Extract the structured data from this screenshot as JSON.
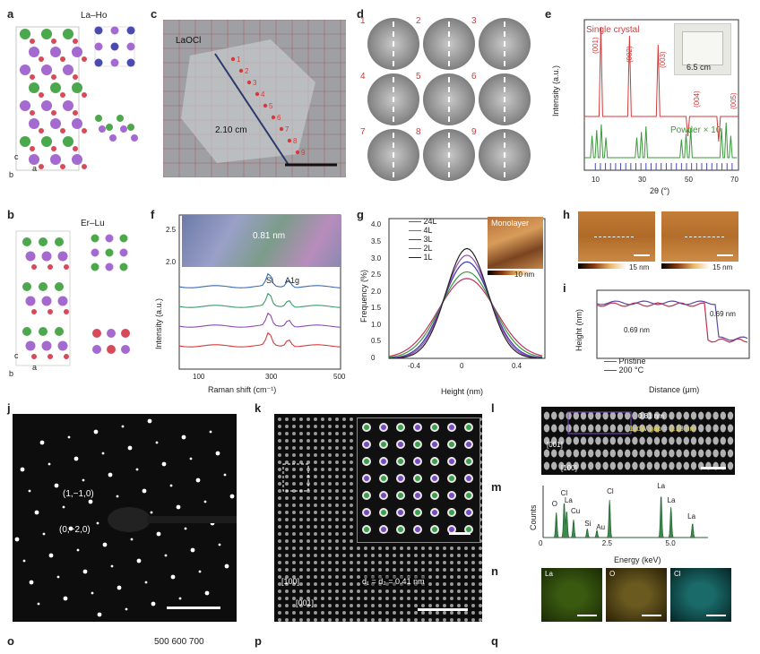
{
  "panel_labels": {
    "a": "a",
    "b": "b",
    "c": "c",
    "d": "d",
    "e": "e",
    "f": "f",
    "g": "g",
    "h": "h",
    "i": "i",
    "j": "j",
    "k": "k",
    "l": "l",
    "m": "m",
    "n": "n",
    "o": "o",
    "p": "p",
    "q": "q"
  },
  "panel_a": {
    "title": "La–Ho",
    "axis_c": "c",
    "axis_a": "a",
    "axis_b": "b"
  },
  "panel_b": {
    "title": "Er–Lu",
    "axis_c": "c",
    "axis_a": "a",
    "axis_b": "b"
  },
  "panel_c": {
    "material": "LaOCl",
    "length": "2.10 cm",
    "points": [
      "1",
      "2",
      "3",
      "4",
      "5",
      "6",
      "7",
      "8",
      "9"
    ]
  },
  "panel_d": {
    "patterns": [
      "1",
      "2",
      "3",
      "4",
      "5",
      "6",
      "7",
      "8",
      "9"
    ]
  },
  "panel_e": {
    "legend_single": "Single crystal",
    "legend_powder": "Powder × 10",
    "inset_size": "6.5 cm",
    "peaks": [
      "(001)",
      "(002)",
      "(003)",
      "(004)",
      "(005)"
    ],
    "ylabel": "Intensity (a.u.)",
    "xlabel": "2θ (°)",
    "xticks": [
      "10",
      "30",
      "50",
      "70"
    ]
  },
  "panel_f": {
    "ylabel": "Intensity (a.u.)",
    "xlabel": "Raman shift (cm⁻¹)",
    "xticks": [
      "100",
      "300",
      "500"
    ],
    "inset_yticks": [
      "2.5",
      "2.0"
    ],
    "inset_label": "0.81 nm",
    "peak_si": "Si",
    "peak_a1g": "A1g"
  },
  "panel_g": {
    "ylabel": "Frequency (%)",
    "xlabel": "Height (nm)",
    "yticks": [
      "0",
      "0.5",
      "1.0",
      "1.5",
      "2.0",
      "2.5",
      "3.0",
      "3.5",
      "4.0"
    ],
    "xticks": [
      "-0.4",
      "0",
      "0.4"
    ],
    "legend": [
      "24L",
      "4L",
      "3L",
      "2L",
      "1L"
    ],
    "inset_title": "Monolayer",
    "inset_scale": "10 nm"
  },
  "panel_h": {
    "scale1": "15 nm",
    "scale2": "15 nm"
  },
  "panel_i": {
    "ylabel": "Height (nm)",
    "xlabel": "Distance (μm)",
    "yticks": [
      "0",
      "0.5",
      "1.0"
    ],
    "xticks": [
      "0",
      "0.5",
      "1.0",
      "1.5"
    ],
    "legend": [
      "Pristine",
      "200 °C"
    ],
    "ann1": "0.69 nm",
    "ann2": "0.69 nm"
  },
  "panel_j": {
    "spot1": "(1,−1,0)",
    "spot2": "(0,−2,0)"
  },
  "panel_k": {
    "dir1": "[100]",
    "dir2": "[001]",
    "spacing": "d₁ = d₂ = 0.41 nm"
  },
  "panel_l": {
    "gap1": "0.81 nm",
    "gap2": "1vdW gap = 0.18 nm",
    "dir1": "[001]",
    "dir2": "[100]"
  },
  "panel_m": {
    "ylabel": "Counts",
    "xlabel": "Energy (keV)",
    "xticks": [
      "0",
      "2.5",
      "5.0"
    ],
    "peaks": [
      "O",
      "Cl",
      "La",
      "Cu",
      "Si",
      "Cl",
      "Au",
      "La",
      "La",
      "La"
    ]
  },
  "panel_n": {
    "maps": [
      "La",
      "O",
      "Cl"
    ]
  },
  "panel_o_text": "500 600 700",
  "colors": {
    "red": "#d43a3a",
    "green": "#3a9a3a",
    "blue": "#4a4ab0",
    "purple": "#9a4ab0",
    "navy": "#2b3a6b"
  }
}
